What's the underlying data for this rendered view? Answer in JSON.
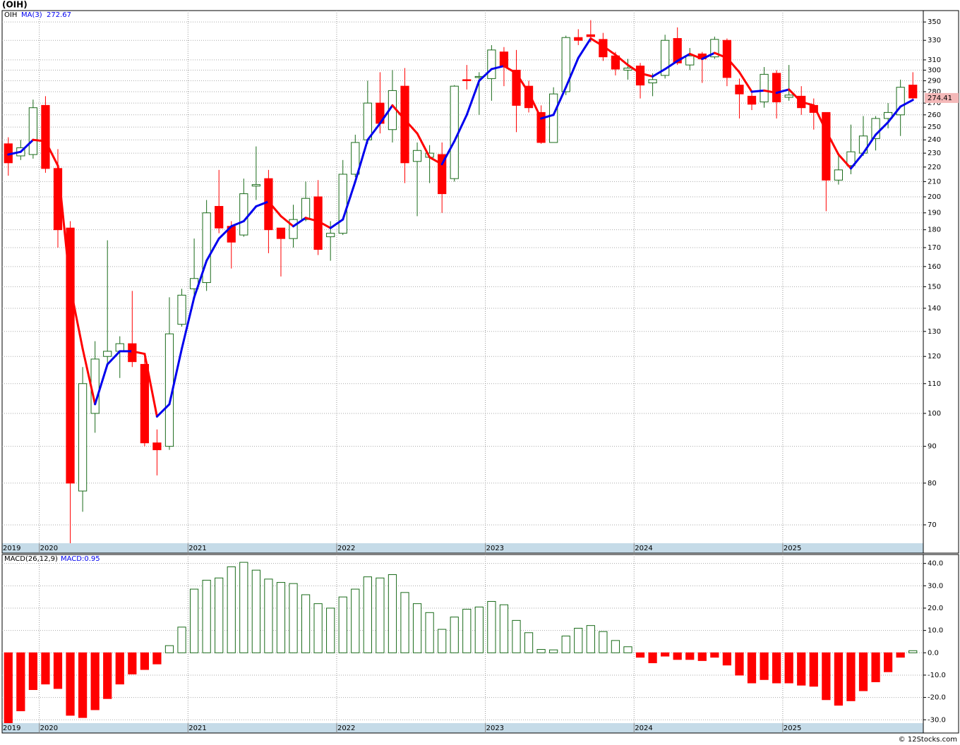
{
  "chart_data": [
    {
      "type": "candlestick",
      "title": "(OIH)",
      "ticker": "OIH",
      "ma_name": "MA(3)",
      "log_scale": true,
      "grid": true,
      "up_color": "#1a6b1a",
      "down_color": "#ff0000",
      "ma_up_color": "#0000ee",
      "ma_down_color": "#ff0000",
      "categories": [
        "2019",
        null,
        null,
        "2020",
        null,
        null,
        null,
        null,
        null,
        null,
        null,
        null,
        null,
        null,
        null,
        "2021",
        null,
        null,
        null,
        null,
        null,
        null,
        null,
        null,
        null,
        null,
        null,
        "2022",
        null,
        null,
        null,
        null,
        null,
        null,
        null,
        null,
        null,
        null,
        null,
        "2023",
        null,
        null,
        null,
        null,
        null,
        null,
        null,
        null,
        null,
        null,
        null,
        "2024",
        null,
        null,
        null,
        null,
        null,
        null,
        null,
        null,
        null,
        null,
        null,
        "2025",
        null,
        null,
        null,
        null,
        null,
        null,
        null,
        null,
        null,
        null
      ],
      "open": [
        237,
        228,
        229,
        268,
        219,
        181,
        78,
        100,
        120,
        122,
        125,
        117,
        91,
        90,
        133,
        149,
        152,
        194,
        182,
        177,
        207,
        212,
        181,
        175,
        186,
        200,
        176,
        178,
        215,
        240,
        270,
        248,
        285,
        224,
        227,
        229,
        212,
        291,
        293,
        292,
        318,
        300,
        285,
        262,
        238,
        280,
        333,
        336,
        331,
        314,
        300,
        304,
        288,
        295,
        332,
        305,
        316,
        313,
        330,
        286,
        276,
        271,
        297,
        275,
        276,
        268,
        262,
        211,
        221,
        230,
        241,
        257,
        260,
        286
      ],
      "high": [
        242,
        240,
        273,
        276,
        233,
        185,
        116,
        126,
        174,
        128,
        148,
        120,
        95,
        145,
        149,
        175,
        198,
        218,
        185,
        212,
        235,
        218,
        181,
        195,
        210,
        211,
        185,
        225,
        244,
        290,
        298,
        300,
        302,
        238,
        236,
        238,
        286,
        305,
        298,
        325,
        323,
        320,
        290,
        268,
        284,
        335,
        342,
        352,
        338,
        318,
        311,
        307,
        297,
        336,
        344,
        322,
        318,
        334,
        332,
        292,
        280,
        303,
        300,
        305,
        285,
        274,
        262,
        229,
        252,
        259,
        259,
        270,
        291,
        298
      ],
      "low": [
        214,
        225,
        226,
        216,
        170,
        65,
        73,
        94,
        117,
        112,
        116,
        90,
        82,
        89,
        132,
        144,
        148,
        178,
        159,
        176,
        198,
        167,
        155,
        170,
        185,
        166,
        163,
        177,
        213,
        237,
        245,
        238,
        209,
        188,
        209,
        190,
        210,
        282,
        260,
        272,
        285,
        246,
        262,
        237,
        238,
        277,
        325,
        328,
        309,
        295,
        291,
        274,
        276,
        292,
        305,
        300,
        288,
        311,
        285,
        257,
        264,
        266,
        257,
        272,
        260,
        248,
        191,
        208,
        215,
        228,
        232,
        249,
        243,
        273
      ],
      "close": [
        223,
        234,
        266,
        219,
        180,
        80,
        110,
        119,
        122,
        125,
        118,
        91,
        89,
        129,
        146,
        154,
        190,
        181,
        173,
        202,
        208,
        180,
        175,
        186,
        199,
        169,
        178,
        215,
        238,
        270,
        253,
        281,
        223,
        232,
        230,
        202,
        285,
        290,
        294,
        320,
        303,
        268,
        266,
        238,
        278,
        333,
        330,
        334,
        313,
        301,
        302,
        286,
        291,
        330,
        307,
        314,
        311,
        331,
        293,
        278,
        269,
        296,
        271,
        277,
        266,
        262,
        211,
        218,
        231,
        243,
        257,
        262,
        284,
        274.41
      ],
      "ma": [
        229,
        231,
        240,
        239,
        221,
        150,
        123,
        103,
        117,
        122,
        122,
        121,
        99,
        103,
        123,
        145,
        163,
        175,
        182,
        185,
        194,
        197,
        188,
        182,
        187,
        185,
        181,
        186,
        210,
        240,
        253,
        268,
        256,
        245,
        227,
        222,
        239,
        260,
        290,
        301,
        304,
        297,
        279,
        257,
        260,
        284,
        312,
        332,
        324,
        315,
        305,
        297,
        294,
        301,
        309,
        316,
        311,
        317,
        312,
        298,
        280,
        281,
        279,
        282,
        271,
        268,
        247,
        229,
        219,
        230,
        244,
        254,
        267,
        272.67
      ],
      "ylim": [
        66,
        363
      ],
      "yticks": [
        70,
        80,
        90,
        100,
        110,
        120,
        130,
        140,
        150,
        160,
        170,
        180,
        190,
        200,
        210,
        220,
        230,
        240,
        250,
        260,
        270,
        280,
        290,
        300,
        310,
        330,
        350
      ]
    },
    {
      "type": "bar",
      "indicator": "MACD(26,12,9)",
      "value_label": "MACD:0.95",
      "grid": true,
      "up_color": "#1a6b1a",
      "down_color": "#ff0000",
      "values": [
        -32,
        -26,
        -16.5,
        -14,
        -16,
        -28,
        -29,
        -25.5,
        -20.5,
        -14,
        -9.5,
        -7.5,
        -5,
        3.2,
        11.5,
        28.5,
        32.5,
        33.5,
        38.5,
        40.5,
        37,
        33,
        31.5,
        31,
        26,
        22,
        20,
        25,
        28.5,
        34,
        33.5,
        35,
        27,
        22,
        18,
        10.5,
        16,
        19.5,
        20.5,
        23,
        21.5,
        14.5,
        9,
        1.5,
        1.3,
        7.5,
        11,
        12.2,
        9.5,
        5.5,
        2.7,
        -2,
        -4.5,
        -1.5,
        -3,
        -3,
        -3.5,
        -2,
        -5.5,
        -10,
        -13.5,
        -12,
        -13.5,
        -13.5,
        -14.5,
        -15,
        -21,
        -23.5,
        -21.5,
        -17,
        -13,
        -8.5,
        -2,
        0.95
      ],
      "ylim": [
        -31.5,
        44
      ],
      "yticks": [
        {
          "value": -30,
          "label": "-30.0"
        },
        {
          "value": -20,
          "label": "-20.0"
        },
        {
          "value": -10,
          "label": "-10.0"
        },
        {
          "value": 0,
          "label": "0.0"
        },
        {
          "value": 10,
          "label": "10.0"
        },
        {
          "value": 20,
          "label": "20.0"
        },
        {
          "value": 30,
          "label": "30.0"
        },
        {
          "value": 40,
          "label": "40.0"
        }
      ]
    }
  ],
  "copyright": "© 12Stocks.com"
}
